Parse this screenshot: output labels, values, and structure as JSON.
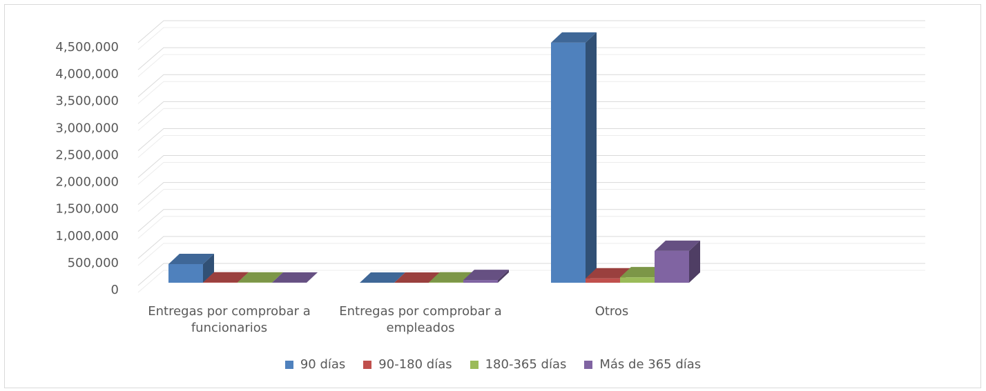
{
  "chart_data": {
    "type": "bar3d",
    "categories": [
      "Entregas por comprobar a funcionarios",
      "Entregas por comprobar a empleados",
      "Otros"
    ],
    "series": [
      {
        "name": "90 días",
        "color": "#4f81bd",
        "values": [
          345000,
          0,
          4450000
        ]
      },
      {
        "name": "90-180 días",
        "color": "#c0504d",
        "values": [
          5000,
          0,
          80000
        ]
      },
      {
        "name": "180-365 días",
        "color": "#9bbb59",
        "values": [
          3000,
          5000,
          100000
        ]
      },
      {
        "name": "Más de 365 días",
        "color": "#8064a2",
        "values": [
          2000,
          50000,
          590000
        ]
      }
    ],
    "ylim": [
      0,
      4500000
    ],
    "yticks": [
      0,
      {
        "value": 500000,
        "label": "500,000"
      },
      {
        "value": 1000000,
        "label": "1,000,000"
      },
      {
        "value": 1500000,
        "label": "1,500,000"
      },
      {
        "value": 2000000,
        "label": "2,000,000"
      },
      {
        "value": 2500000,
        "label": "2,500,000"
      },
      {
        "value": 3000000,
        "label": "3,000,000"
      },
      {
        "value": 3500000,
        "label": "3,500,000"
      },
      {
        "value": 4000000,
        "label": "4,000,000"
      },
      {
        "value": 4500000,
        "label": "4,500,000"
      }
    ],
    "grid": true,
    "legend": "bottom"
  }
}
